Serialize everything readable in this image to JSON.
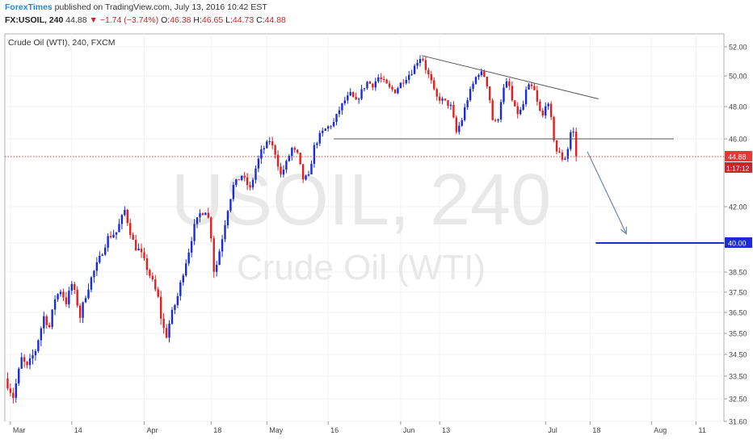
{
  "header": {
    "brand": "ForexTimes",
    "published": "published on TradingView.com, July 13, 2016 10:42 EST",
    "symbol": "FX:USOIL, 240",
    "last": "44.88",
    "change_arrow": "▼",
    "change": "−1.74 (−3.74%)",
    "o_label": "O:",
    "o": "46.38",
    "h_label": "H:",
    "h": "46.65",
    "l_label": "L:",
    "l": "44.73",
    "c_label": "C:",
    "c": "44.88"
  },
  "chart_data": {
    "type": "candlestick",
    "title": "Crude Oil (WTI), 240, FXCM",
    "watermark_symbol": "USOIL, 240",
    "watermark_name": "Crude Oil (WTI)",
    "x_ticks": [
      "Mar",
      "14",
      "Apr",
      "18",
      "May",
      "16",
      "Jun",
      "13",
      "Jul",
      "18",
      "Aug",
      "11"
    ],
    "y_ticks": [
      "52.00",
      "50.00",
      "48.00",
      "46.00",
      "42.00",
      "40.00",
      "38.50",
      "37.50",
      "36.50",
      "35.50",
      "34.50",
      "33.50",
      "32.50",
      "31.60"
    ],
    "ylim": [
      31.6,
      52.0
    ],
    "price_label": "44.88",
    "countdown_label": "1:17:12",
    "target_label": "40.00",
    "series_path": [
      [
        0.0,
        33.4
      ],
      [
        1.5,
        32.6
      ],
      [
        3.0,
        34.3
      ],
      [
        4.0,
        33.9
      ],
      [
        5.5,
        34.7
      ],
      [
        7.0,
        36.3
      ],
      [
        8.0,
        35.8
      ],
      [
        9.0,
        37.2
      ],
      [
        10.0,
        37.6
      ],
      [
        11.0,
        37.0
      ],
      [
        12.0,
        37.9
      ],
      [
        12.7,
        37.3
      ],
      [
        13.5,
        36.3
      ],
      [
        14.2,
        37.1
      ],
      [
        15.5,
        38.2
      ],
      [
        17.0,
        39.2
      ],
      [
        18.5,
        40.3
      ],
      [
        20.0,
        40.6
      ],
      [
        21.5,
        41.8
      ],
      [
        22.5,
        40.6
      ],
      [
        23.3,
        39.8
      ],
      [
        24.2,
        39.6
      ],
      [
        25.5,
        38.7
      ],
      [
        26.5,
        38.0
      ],
      [
        27.5,
        37.2
      ],
      [
        28.2,
        35.9
      ],
      [
        29.0,
        35.4
      ],
      [
        29.8,
        36.3
      ],
      [
        31.0,
        37.3
      ],
      [
        32.0,
        38.5
      ],
      [
        33.0,
        39.6
      ],
      [
        34.0,
        40.9
      ],
      [
        35.0,
        41.6
      ],
      [
        36.0,
        41.8
      ],
      [
        36.8,
        41.1
      ],
      [
        37.5,
        38.6
      ],
      [
        38.0,
        38.9
      ],
      [
        39.0,
        40.3
      ],
      [
        40.0,
        41.9
      ],
      [
        41.0,
        43.2
      ],
      [
        42.5,
        43.8
      ],
      [
        44.0,
        43.0
      ],
      [
        45.0,
        44.2
      ],
      [
        46.0,
        45.2
      ],
      [
        47.5,
        45.9
      ],
      [
        48.5,
        45.1
      ],
      [
        49.5,
        43.8
      ],
      [
        50.5,
        44.5
      ],
      [
        51.5,
        45.4
      ],
      [
        52.5,
        45.0
      ],
      [
        53.5,
        43.6
      ],
      [
        54.5,
        43.7
      ],
      [
        55.5,
        45.5
      ],
      [
        56.5,
        46.2
      ],
      [
        57.5,
        46.6
      ],
      [
        59.0,
        47.0
      ],
      [
        60.0,
        47.8
      ],
      [
        61.0,
        48.4
      ],
      [
        62.0,
        48.8
      ],
      [
        63.0,
        48.3
      ],
      [
        64.0,
        49.0
      ],
      [
        65.0,
        49.6
      ],
      [
        66.0,
        49.4
      ],
      [
        67.0,
        49.9
      ],
      [
        68.0,
        49.6
      ],
      [
        69.0,
        49.2
      ],
      [
        70.0,
        49.0
      ],
      [
        71.0,
        49.5
      ],
      [
        72.0,
        49.9
      ],
      [
        73.0,
        50.3
      ],
      [
        74.0,
        51.0
      ],
      [
        74.8,
        51.4
      ],
      [
        75.5,
        50.5
      ],
      [
        76.5,
        49.6
      ],
      [
        77.3,
        48.6
      ],
      [
        78.0,
        48.5
      ],
      [
        79.0,
        48.3
      ],
      [
        80.0,
        48.0
      ],
      [
        81.0,
        46.4
      ],
      [
        82.0,
        47.2
      ],
      [
        82.8,
        48.3
      ],
      [
        83.5,
        49.0
      ],
      [
        84.5,
        49.9
      ],
      [
        85.2,
        50.3
      ],
      [
        86.0,
        50.0
      ],
      [
        86.7,
        49.2
      ],
      [
        87.5,
        47.2
      ],
      [
        88.3,
        46.9
      ],
      [
        89.0,
        48.4
      ],
      [
        89.8,
        49.6
      ],
      [
        90.5,
        49.3
      ],
      [
        91.2,
        48.0
      ],
      [
        92.0,
        47.6
      ],
      [
        92.8,
        47.8
      ],
      [
        93.5,
        49.0
      ],
      [
        94.2,
        49.4
      ],
      [
        95.0,
        49.0
      ],
      [
        95.8,
        47.8
      ],
      [
        96.5,
        47.4
      ],
      [
        97.2,
        48.5
      ],
      [
        98.0,
        47.2
      ],
      [
        98.8,
        45.3
      ],
      [
        99.6,
        45.0
      ],
      [
        100.3,
        44.6
      ],
      [
        101.0,
        45.4
      ],
      [
        101.6,
        46.6
      ],
      [
        102.0,
        46.4
      ],
      [
        102.5,
        44.9
      ]
    ],
    "resistance_line": {
      "from": [
        74.8,
        51.4
      ],
      "to": [
        106.5,
        48.5
      ]
    },
    "support_line": {
      "from": [
        59.0,
        46.0
      ],
      "to": [
        120.0,
        46.0
      ]
    },
    "target_line": {
      "from": [
        106.0,
        40.0
      ],
      "to": [
        126.0,
        40.0
      ],
      "value": 40.0
    },
    "forecast_arrow": {
      "from": [
        104.5,
        45.2
      ],
      "to": [
        111.5,
        40.5
      ]
    },
    "x_tick_positions": [
      1,
      12,
      25,
      37,
      47,
      58,
      71,
      78,
      97,
      105,
      116,
      124
    ],
    "x_range": [
      0,
      129
    ],
    "colors": {
      "up": "#1a2cd6",
      "down": "#e02020",
      "price_line": "#e53935",
      "target": "#1a2cd6",
      "trend": "#555555",
      "arrow": "#6f86ad"
    }
  }
}
